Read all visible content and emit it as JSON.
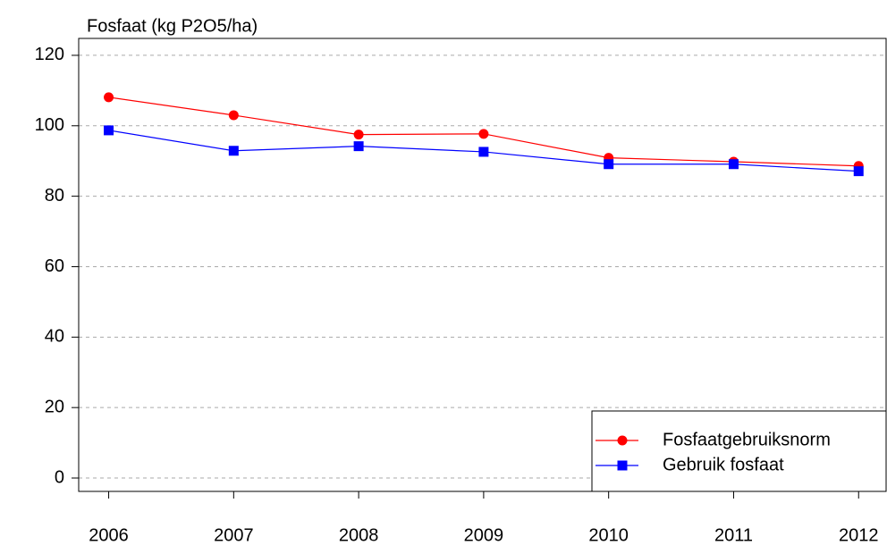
{
  "chart_data": {
    "type": "line",
    "ylabel": "Fosfaat (kg P2O5/ha)",
    "x": [
      2006,
      2007,
      2008,
      2009,
      2010,
      2011,
      2012
    ],
    "series": [
      {
        "name": "Fosfaatgebruiksnorm",
        "color": "#ff0000",
        "marker": "circle",
        "values": [
          108.1,
          103.0,
          97.5,
          97.7,
          90.9,
          89.8,
          88.6
        ]
      },
      {
        "name": "Gebruik fosfaat",
        "color": "#0000ff",
        "marker": "square",
        "values": [
          98.7,
          92.9,
          94.2,
          92.6,
          89.1,
          89.1,
          87.1
        ]
      }
    ],
    "xlim": [
      2005.76,
      2012.22
    ],
    "xticks": [
      2006,
      2007,
      2008,
      2009,
      2010,
      2011,
      2012
    ],
    "ylim": [
      -3.8,
      124.8
    ],
    "yticks": [
      0,
      20,
      40,
      60,
      80,
      100,
      120
    ],
    "grid": true,
    "legend": "bottom-right"
  }
}
